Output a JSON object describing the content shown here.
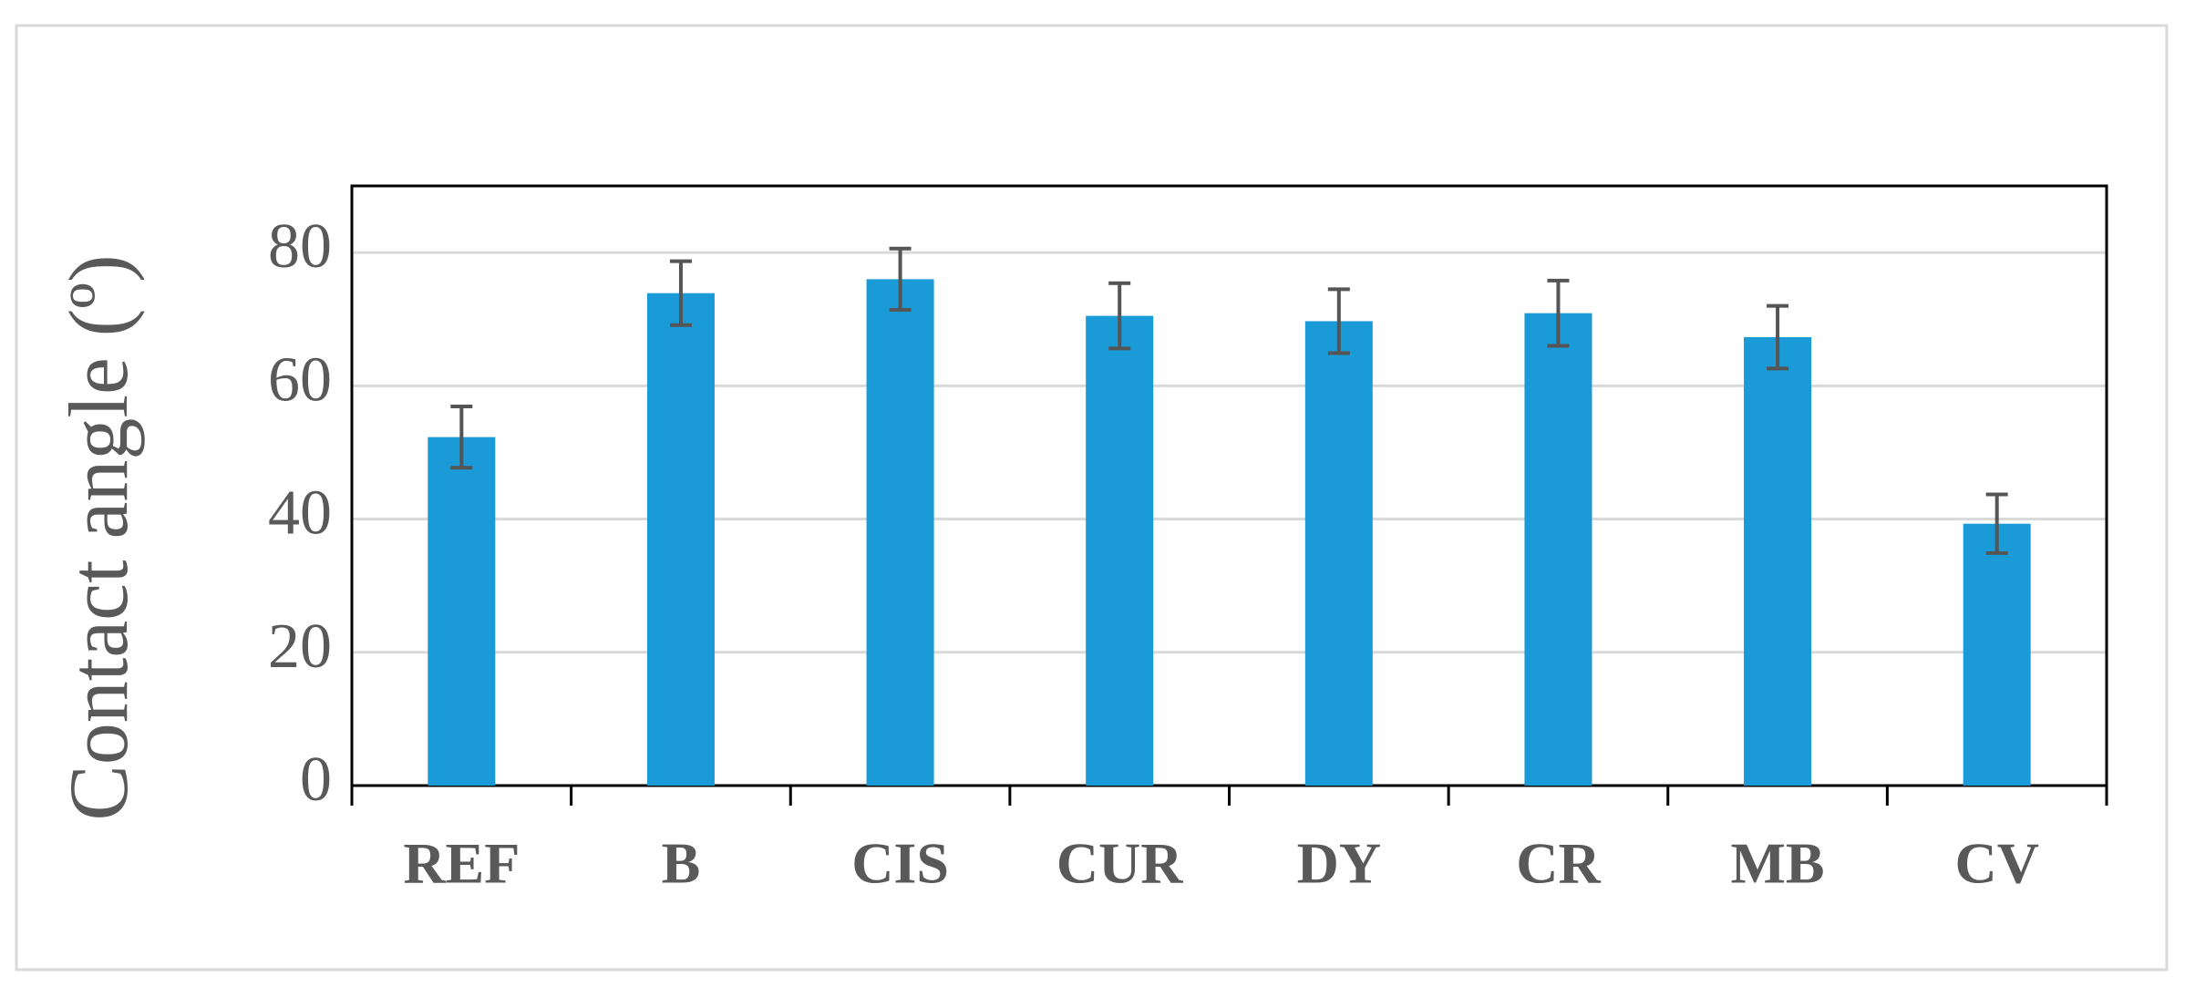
{
  "chart_data": {
    "type": "bar",
    "y_label": "Contact angle (º)",
    "categories": [
      "REF",
      "B",
      "CIS",
      "CUR",
      "DY",
      "CR",
      "MB",
      "CV"
    ],
    "values": [
      52.3,
      73.9,
      76,
      70.5,
      69.7,
      70.9,
      67.3,
      39.3
    ],
    "errors": [
      4.6,
      4.8,
      4.6,
      4.9,
      4.8,
      4.9,
      4.7,
      4.4
    ],
    "color": "#1a9ad6",
    "error_color": "#555555",
    "ylim": [
      0,
      90
    ],
    "yticks": [
      0,
      20,
      40,
      60,
      80
    ],
    "grid": true
  }
}
